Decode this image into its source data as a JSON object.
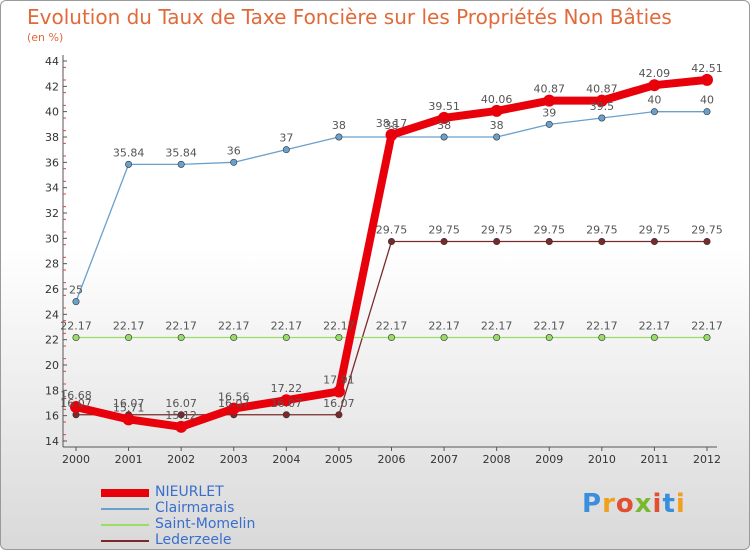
{
  "page": {
    "title": "Evolution du Taux de Taxe Foncière sur les Propriétés Non Bâties",
    "subtitle": "(en %)",
    "logo": "Proxiti"
  },
  "chart_data": {
    "type": "line",
    "title": "Evolution du Taux de Taxe Foncière sur les Propriétés Non Bâties",
    "ylabel": "(en %)",
    "xlabel": "",
    "x": [
      "2000",
      "2001",
      "2002",
      "2003",
      "2004",
      "2005",
      "2006",
      "2007",
      "2008",
      "2009",
      "2010",
      "2011",
      "2012"
    ],
    "ylim": [
      14,
      44
    ],
    "yticks": [
      14,
      16,
      18,
      20,
      22,
      24,
      26,
      28,
      30,
      32,
      34,
      36,
      38,
      40,
      42,
      44
    ],
    "grid": false,
    "legend_position": "bottom-left",
    "series": [
      {
        "name": "NIEURLET",
        "color": "#e8000b",
        "labels": [
          "16.68",
          "15.71",
          "15.12",
          "16.56",
          "17.22",
          "17.91",
          "38.17",
          "39.51",
          "40.06",
          "40.87",
          "40.87",
          "42.09",
          "42.51"
        ],
        "values": [
          16.68,
          15.71,
          15.12,
          16.56,
          17.22,
          17.91,
          38.17,
          39.51,
          40.06,
          40.87,
          40.87,
          42.09,
          42.51
        ]
      },
      {
        "name": "Clairmarais",
        "color": "#6aa0cc",
        "labels": [
          "25",
          "35.84",
          "35.84",
          "36",
          "37",
          "38",
          "38",
          "38",
          "38",
          "39",
          "39.5",
          "40",
          "40"
        ],
        "values": [
          25,
          35.84,
          35.84,
          36,
          37,
          38,
          38,
          38,
          38,
          39,
          39.5,
          40,
          40
        ]
      },
      {
        "name": "Saint-Momelin",
        "color": "#99dd66",
        "labels": [
          "22.17",
          "22.17",
          "22.17",
          "22.17",
          "22.17",
          "22.17",
          "22.17",
          "22.17",
          "22.17",
          "22.17",
          "22.17",
          "22.17",
          "22.17"
        ],
        "values": [
          22.17,
          22.17,
          22.17,
          22.17,
          22.17,
          22.17,
          22.17,
          22.17,
          22.17,
          22.17,
          22.17,
          22.17,
          22.17
        ]
      },
      {
        "name": "Lederzeele",
        "color": "#7a2a2a",
        "labels": [
          "16.07",
          "16.07",
          "16.07",
          "16.07",
          "16.07",
          "16.07",
          "29.75",
          "29.75",
          "29.75",
          "29.75",
          "29.75",
          "29.75",
          "29.75"
        ],
        "values": [
          16.07,
          16.07,
          16.07,
          16.07,
          16.07,
          16.07,
          29.75,
          29.75,
          29.75,
          29.75,
          29.75,
          29.75,
          29.75
        ]
      }
    ]
  }
}
